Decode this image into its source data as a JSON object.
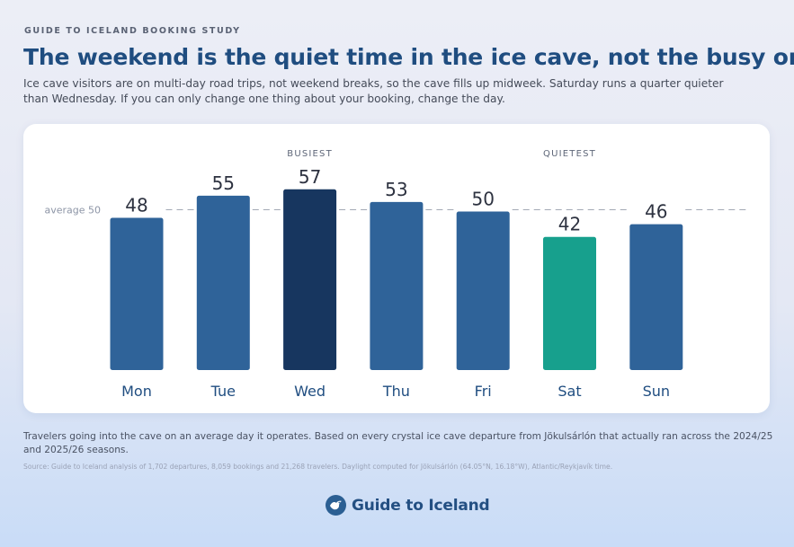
{
  "header": {
    "eyebrow": "GUIDE TO ICELAND BOOKING STUDY",
    "title": "The weekend is the quiet time in the ice cave, not the busy one",
    "subtitle": "Ice cave visitors are on multi-day road trips, not weekend breaks, so the cave fills up midweek. Saturday runs a quarter quieter than Wednesday. If you can only change one thing about your booking, change the day."
  },
  "chart_data": {
    "type": "bar",
    "categories": [
      "Mon",
      "Tue",
      "Wed",
      "Thu",
      "Fri",
      "Sat",
      "Sun"
    ],
    "values": [
      48,
      55,
      57,
      53,
      50,
      42,
      46
    ],
    "ylim": [
      0,
      62
    ],
    "grid": false,
    "reference_line": {
      "label": "average 50",
      "value": 50
    },
    "annotations": [
      {
        "label": "BUSIEST",
        "category": "Wed"
      },
      {
        "label": "QUIETEST",
        "category": "Sat"
      }
    ],
    "colors": {
      "default": "#2f6399",
      "busiest": "#17365f",
      "quietest": "#17a08d",
      "value_text": "#2d3240",
      "category_text": "#1f4d80",
      "reference": "#a3a9b5"
    },
    "highlight": {
      "Wed": "busiest",
      "Sat": "quietest"
    }
  },
  "footer": {
    "note": "Travelers going into the cave on an average day it operates. Based on every crystal ice cave departure from Jökulsárlón that actually ran across the 2024/25 and 2025/26 seasons.",
    "source": "Source: Guide to Iceland analysis of 1,702 departures, 8,059 bookings and 21,268 travelers. Daylight computed for Jökulsárlón (64.05°N, 16.18°W), Atlantic/Reykjavík time.",
    "brand": "Guide to Iceland",
    "logo_icon": "bird-icon"
  }
}
